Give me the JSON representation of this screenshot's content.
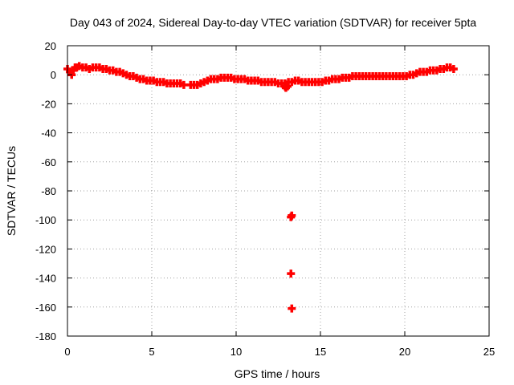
{
  "chart_data": {
    "type": "scatter",
    "title": "Day 043 of 2024, Sidereal Day-to-day VTEC variation (SDTVAR) for receiver 5pta",
    "xlabel": "GPS time / hours",
    "ylabel": "SDTVAR / TECUs",
    "xlim": [
      0,
      25
    ],
    "ylim": [
      -180,
      20
    ],
    "xticks": [
      0,
      5,
      10,
      15,
      20,
      25
    ],
    "yticks": [
      20,
      0,
      -20,
      -40,
      -60,
      -80,
      -100,
      -120,
      -140,
      -160,
      -180
    ],
    "grid": true,
    "series": [
      {
        "name": "SDTVAR",
        "color": "#ff0000",
        "marker": "plus",
        "points": [
          [
            0.0,
            4
          ],
          [
            0.15,
            2
          ],
          [
            0.25,
            0
          ],
          [
            0.35,
            3
          ],
          [
            0.45,
            5
          ],
          [
            0.55,
            5
          ],
          [
            0.7,
            6
          ],
          [
            0.9,
            5
          ],
          [
            1.1,
            5
          ],
          [
            1.3,
            4
          ],
          [
            1.5,
            5
          ],
          [
            1.7,
            5
          ],
          [
            1.9,
            5
          ],
          [
            2.1,
            4
          ],
          [
            2.3,
            4
          ],
          [
            2.5,
            3
          ],
          [
            2.7,
            3
          ],
          [
            2.9,
            2
          ],
          [
            3.1,
            2
          ],
          [
            3.3,
            1
          ],
          [
            3.5,
            0
          ],
          [
            3.7,
            -1
          ],
          [
            3.9,
            -1
          ],
          [
            4.1,
            -2
          ],
          [
            4.3,
            -3
          ],
          [
            4.5,
            -3
          ],
          [
            4.7,
            -4
          ],
          [
            4.9,
            -4
          ],
          [
            5.1,
            -4
          ],
          [
            5.3,
            -5
          ],
          [
            5.5,
            -5
          ],
          [
            5.7,
            -5
          ],
          [
            5.9,
            -6
          ],
          [
            6.1,
            -6
          ],
          [
            6.3,
            -6
          ],
          [
            6.5,
            -6
          ],
          [
            6.7,
            -6
          ],
          [
            6.9,
            -7
          ],
          [
            7.3,
            -7
          ],
          [
            7.5,
            -7
          ],
          [
            7.7,
            -7
          ],
          [
            7.9,
            -6
          ],
          [
            8.1,
            -5
          ],
          [
            8.3,
            -4
          ],
          [
            8.5,
            -3
          ],
          [
            8.7,
            -3
          ],
          [
            8.9,
            -3
          ],
          [
            9.1,
            -2
          ],
          [
            9.3,
            -2
          ],
          [
            9.5,
            -2
          ],
          [
            9.7,
            -2
          ],
          [
            9.9,
            -3
          ],
          [
            10.1,
            -3
          ],
          [
            10.3,
            -3
          ],
          [
            10.5,
            -3
          ],
          [
            10.7,
            -4
          ],
          [
            10.9,
            -4
          ],
          [
            11.1,
            -4
          ],
          [
            11.3,
            -4
          ],
          [
            11.5,
            -5
          ],
          [
            11.7,
            -5
          ],
          [
            11.9,
            -5
          ],
          [
            12.1,
            -5
          ],
          [
            12.3,
            -5
          ],
          [
            12.5,
            -6
          ],
          [
            12.7,
            -6
          ],
          [
            12.9,
            -6
          ],
          [
            13.1,
            -5
          ],
          [
            13.3,
            -5
          ],
          [
            13.5,
            -4
          ],
          [
            13.7,
            -4
          ],
          [
            13.9,
            -5
          ],
          [
            14.1,
            -5
          ],
          [
            14.3,
            -5
          ],
          [
            14.5,
            -5
          ],
          [
            14.7,
            -5
          ],
          [
            14.9,
            -5
          ],
          [
            15.1,
            -5
          ],
          [
            15.3,
            -4
          ],
          [
            15.5,
            -4
          ],
          [
            15.7,
            -3
          ],
          [
            15.9,
            -3
          ],
          [
            16.1,
            -3
          ],
          [
            16.3,
            -2
          ],
          [
            16.5,
            -2
          ],
          [
            16.7,
            -2
          ],
          [
            16.9,
            -1
          ],
          [
            17.1,
            -1
          ],
          [
            17.3,
            -1
          ],
          [
            17.5,
            -1
          ],
          [
            17.7,
            -1
          ],
          [
            17.9,
            -1
          ],
          [
            18.1,
            -1
          ],
          [
            18.3,
            -1
          ],
          [
            18.5,
            -1
          ],
          [
            18.7,
            -1
          ],
          [
            18.9,
            -1
          ],
          [
            19.1,
            -1
          ],
          [
            19.3,
            -1
          ],
          [
            19.5,
            -1
          ],
          [
            19.7,
            -1
          ],
          [
            19.9,
            -1
          ],
          [
            20.1,
            -1
          ],
          [
            20.3,
            0
          ],
          [
            20.5,
            0
          ],
          [
            20.7,
            1
          ],
          [
            20.9,
            2
          ],
          [
            21.1,
            2
          ],
          [
            21.3,
            2
          ],
          [
            21.5,
            3
          ],
          [
            21.7,
            3
          ],
          [
            21.9,
            3
          ],
          [
            22.1,
            4
          ],
          [
            22.3,
            4
          ],
          [
            22.5,
            5
          ],
          [
            22.7,
            5
          ],
          [
            22.9,
            4
          ],
          [
            12.9,
            -8
          ],
          [
            12.95,
            -9
          ],
          [
            13.05,
            -8
          ],
          [
            13.25,
            -98
          ],
          [
            13.3,
            -97
          ],
          [
            13.25,
            -137
          ],
          [
            13.3,
            -161
          ]
        ]
      }
    ]
  }
}
